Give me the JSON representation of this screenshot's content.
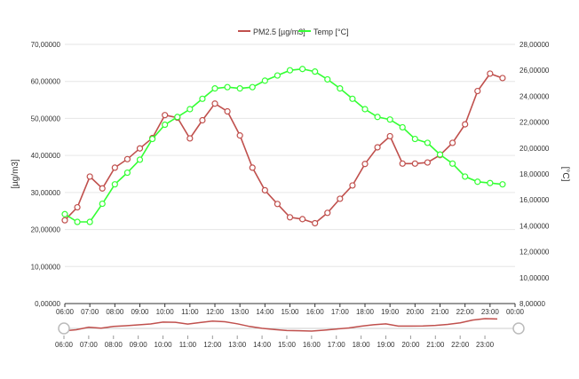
{
  "chart_data": {
    "type": "line",
    "title": "",
    "legend": {
      "placement": "top-center"
    },
    "grid": {
      "horizontal": true,
      "vertical": false
    },
    "x_axis": {
      "ticks": [
        "06:00",
        "07:00",
        "08:00",
        "09:00",
        "10:00",
        "11:00",
        "12:00",
        "13:00",
        "14:00",
        "15:00",
        "16:00",
        "17:00",
        "18:00",
        "19:00",
        "20:00",
        "21:00",
        "22:00",
        "23:00",
        "00:00"
      ],
      "range": [
        0,
        18
      ]
    },
    "y_axis_left": {
      "label": "[µg/m3]",
      "range": [
        0,
        70
      ],
      "ticks": [
        "0,00000",
        "10,00000",
        "20,00000",
        "30,00000",
        "40,00000",
        "50,00000",
        "60,00000",
        "70,00000"
      ]
    },
    "y_axis_right": {
      "label": "[°C]",
      "range": [
        8,
        28
      ],
      "ticks": [
        "8,00000",
        "10,00000",
        "12,00000",
        "14,00000",
        "16,00000",
        "18,00000",
        "20,00000",
        "22,00000",
        "24,00000",
        "26,00000",
        "28,00000"
      ]
    },
    "series": [
      {
        "name": "PM2.5 [µg/m3]",
        "axis": "left",
        "color": "#c0504d",
        "x": [
          0,
          0.5,
          1,
          1.5,
          2,
          2.5,
          3,
          3.5,
          4,
          4.5,
          5,
          5.5,
          6,
          6.5,
          7,
          7.5,
          8,
          8.5,
          9,
          9.5,
          10,
          10.5,
          11,
          11.5,
          12,
          12.5,
          13,
          13.5,
          14,
          14.5,
          15,
          15.5,
          16,
          16.5,
          17,
          17.5
        ],
        "values": [
          22.5,
          26.0,
          34.3,
          31.1,
          36.7,
          39.0,
          41.9,
          44.7,
          50.9,
          50.2,
          44.6,
          49.5,
          54.0,
          51.9,
          45.4,
          36.7,
          30.6,
          26.9,
          23.3,
          22.8,
          21.7,
          24.5,
          28.3,
          31.9,
          37.7,
          42.2,
          45.2,
          37.8,
          37.8,
          38.1,
          40.1,
          43.4,
          48.4,
          57.4,
          62.1,
          60.9
        ]
      },
      {
        "name": "Temp [°C]",
        "axis": "right",
        "color": "#33ff33",
        "x": [
          0,
          0.5,
          1,
          1.5,
          2,
          2.5,
          3,
          3.5,
          4,
          4.5,
          5,
          5.5,
          6,
          6.5,
          7,
          7.5,
          8,
          8.5,
          9,
          9.5,
          10,
          10.5,
          11,
          11.5,
          12,
          12.5,
          13,
          13.5,
          14,
          14.5,
          15,
          15.5,
          16,
          16.5,
          17,
          17.5
        ],
        "values": [
          14.9,
          14.3,
          14.3,
          15.7,
          17.2,
          18.1,
          19.1,
          20.7,
          21.8,
          22.4,
          23.0,
          23.8,
          24.6,
          24.7,
          24.6,
          24.7,
          25.2,
          25.6,
          26.0,
          26.1,
          25.9,
          25.3,
          24.6,
          23.8,
          23.0,
          22.4,
          22.2,
          21.6,
          20.7,
          20.4,
          19.5,
          18.8,
          17.8,
          17.4,
          17.3,
          17.2
        ]
      }
    ],
    "navigator": {
      "ticks": [
        "06:00",
        "07:00",
        "08:00",
        "09:00",
        "10:00",
        "11:00",
        "12:00",
        "13:00",
        "14:00",
        "15:00",
        "16:00",
        "17:00",
        "18:00",
        "19:00",
        "20:00",
        "21:00",
        "22:00",
        "23:00"
      ]
    }
  }
}
